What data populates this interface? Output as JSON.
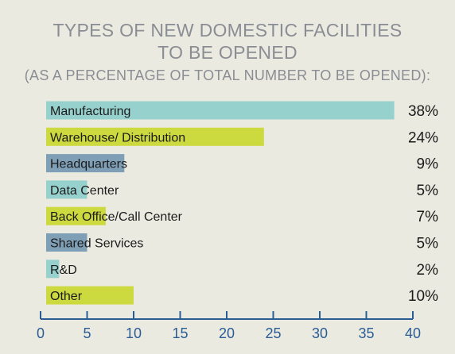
{
  "chart_data": {
    "type": "bar",
    "orientation": "horizontal",
    "title": "TYPES OF NEW DOMESTIC FACILITIES",
    "title_line2": "TO BE OPENED",
    "subtitle": "(AS A PERCENTAGE OF TOTAL NUMBER TO BE OPENED):",
    "categories": [
      "Manufacturing",
      "Warehouse/ Distribution",
      "Headquarters",
      "Data Center",
      "Back Office/Call Center",
      "Shared Services",
      "R&D",
      "Other"
    ],
    "values": [
      38,
      24,
      9,
      5,
      7,
      5,
      2,
      10
    ],
    "value_labels": [
      "38%",
      "24%",
      "9%",
      "5%",
      "7%",
      "5%",
      "2%",
      "10%"
    ],
    "bar_colors": [
      "#97d1cd",
      "#ccd93f",
      "#7f9fb7",
      "#97d1cd",
      "#ccd93f",
      "#7f9fb7",
      "#97d1cd",
      "#ccd93f"
    ],
    "xlim": [
      0,
      40
    ],
    "xticks": [
      0,
      5,
      10,
      15,
      20,
      25,
      30,
      35,
      40
    ],
    "xlabel": "",
    "ylabel": "",
    "grid": false,
    "axis_color": "#2a5d96"
  }
}
